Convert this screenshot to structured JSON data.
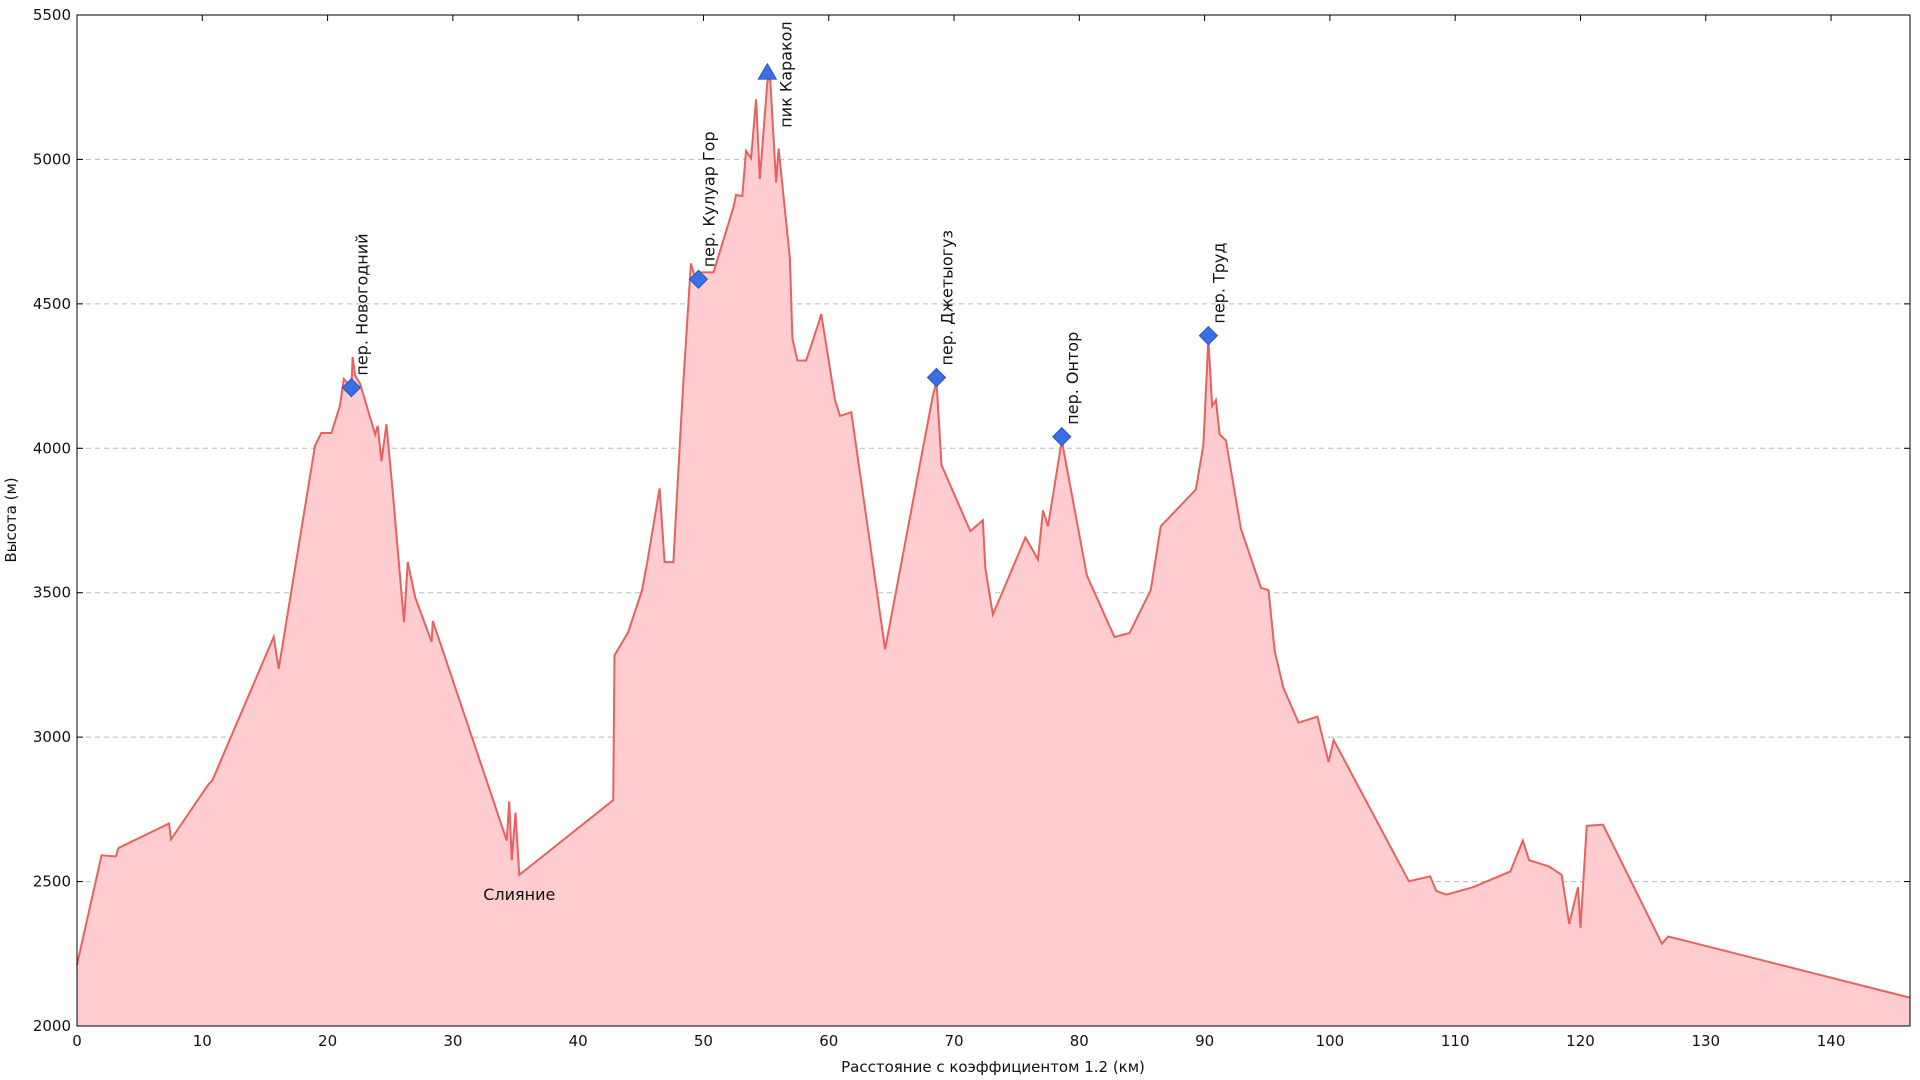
{
  "chart_data": {
    "type": "area",
    "xlabel": "Расстояние с коэффициентом 1.2 (км)",
    "ylabel": "Высота (м)",
    "x": [
      0,
      1.96,
      3.1,
      3.3,
      7.35,
      7.5,
      10.5,
      10.8,
      15.7,
      16.1,
      19.0,
      19.5,
      20.3,
      20.98,
      21.3,
      21.9,
      22.0,
      22.2,
      22.6,
      23.8,
      24.0,
      24.3,
      24.7,
      25.2,
      26.1,
      26.4,
      27.0,
      28.3,
      28.4,
      34.3,
      34.5,
      34.7,
      35.0,
      35.3,
      42.8,
      42.9,
      44.0,
      45.1,
      45.5,
      46.5,
      46.9,
      47.6,
      48.2,
      48.4,
      49.0,
      49.4,
      49.7,
      50.8,
      52.4,
      52.6,
      53.1,
      53.4,
      53.8,
      54.2,
      54.5,
      55.1,
      55.3,
      55.8,
      56.0,
      56.9,
      57.1,
      57.5,
      58.2,
      59.2,
      59.4,
      60.5,
      60.9,
      61.8,
      64.5,
      68.3,
      68.6,
      69.0,
      71.3,
      72.3,
      72.5,
      73.1,
      75.7,
      76.7,
      77.1,
      77.5,
      78.6,
      80.6,
      82.8,
      84.0,
      85.7,
      86.5,
      89.3,
      89.9,
      90.3,
      90.6,
      90.9,
      91.2,
      91.7,
      92.9,
      94.5,
      95.1,
      95.6,
      96.3,
      97.5,
      99.0,
      99.9,
      100.3,
      106.3,
      108.0,
      108.5,
      109.3,
      111.4,
      114.4,
      115.4,
      115.9,
      117.5,
      118.5,
      119.1,
      119.8,
      120.0,
      120.5,
      121.8,
      126.5,
      127.0,
      146.3
    ],
    "values": [
      2212,
      2591,
      2587,
      2616,
      2701,
      2646,
      2837,
      2850,
      3347,
      3237,
      4010,
      4053,
      4053,
      4146,
      4240,
      4210,
      4316,
      4252,
      4223,
      4048,
      4078,
      3955,
      4083,
      3849,
      3398,
      3606,
      3483,
      3330,
      3402,
      2642,
      2778,
      2574,
      2739,
      2523,
      2782,
      3283,
      3364,
      3509,
      3602,
      3861,
      3606,
      3606,
      4082,
      4231,
      4640,
      4580,
      4609,
      4609,
      4835,
      4877,
      4873,
      5030,
      5004,
      5208,
      4932,
      5268,
      5298,
      4920,
      5038,
      4657,
      4380,
      4304,
      4304,
      4435,
      4465,
      4167,
      4112,
      4125,
      3304,
      4180,
      4231,
      3942,
      3713,
      3751,
      3585,
      3424,
      3691,
      3615,
      3785,
      3730,
      4027,
      3560,
      3347,
      3360,
      3509,
      3730,
      3857,
      4010,
      4380,
      4146,
      4167,
      4048,
      4027,
      3721,
      3517,
      3509,
      3296,
      3169,
      3050,
      3071,
      2914,
      2990,
      2501,
      2518,
      2467,
      2455,
      2480,
      2535,
      2642,
      2574,
      2552,
      2523,
      2353,
      2480,
      2340,
      2693,
      2697,
      2285,
      2310,
      2098
    ],
    "color": "#e8605f",
    "fill": "#ffcdd0",
    "markers": [
      {
        "name": "пер. Новогодний",
        "x": 21.9,
        "y": 4210,
        "shape": "diamond"
      },
      {
        "name": "пер. Кулуар Гор",
        "x": 49.6,
        "y": 4585,
        "shape": "diamond"
      },
      {
        "name": "пик Каракол",
        "x": 55.1,
        "y": 5300,
        "shape": "triangle"
      },
      {
        "name": "пер. Джетыогуз",
        "x": 68.6,
        "y": 4245,
        "shape": "diamond"
      },
      {
        "name": "пер. Онтор",
        "x": 78.6,
        "y": 4040,
        "shape": "diamond"
      },
      {
        "name": "пер. Труд",
        "x": 90.3,
        "y": 4390,
        "shape": "diamond"
      }
    ],
    "marker_color": "#3b6fe8",
    "annotations": [
      {
        "text": "Слияние",
        "x": 35.3
      }
    ],
    "xlim": [
      0,
      146.3
    ],
    "ylim": [
      2000,
      5500
    ],
    "xticks": [
      0,
      10,
      20,
      30,
      40,
      50,
      60,
      70,
      80,
      90,
      100,
      110,
      120,
      130,
      140
    ],
    "yticks": [
      2000,
      2500,
      3000,
      3500,
      4000,
      4500,
      5000,
      5500
    ],
    "grid": true
  }
}
